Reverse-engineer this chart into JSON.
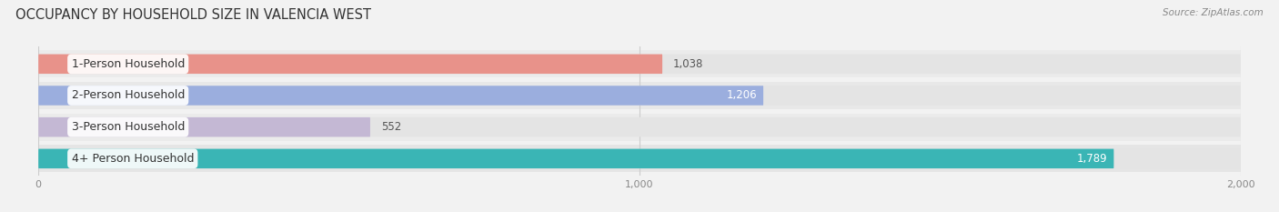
{
  "title": "OCCUPANCY BY HOUSEHOLD SIZE IN VALENCIA WEST",
  "source": "Source: ZipAtlas.com",
  "categories": [
    "1-Person Household",
    "2-Person Household",
    "3-Person Household",
    "4+ Person Household"
  ],
  "values": [
    1038,
    1206,
    552,
    1789
  ],
  "value_labels": [
    "1,038",
    "1,206",
    "552",
    "1,789"
  ],
  "value_label_inside": [
    false,
    true,
    false,
    true
  ],
  "bar_colors": [
    "#e8928a",
    "#9baede",
    "#c4b8d4",
    "#3ab5b5"
  ],
  "bar_bg_color": "#e4e4e4",
  "background_color": "#f2f2f2",
  "row_bg_colors": [
    "#ebebeb",
    "#e8e8e8",
    "#ebebeb",
    "#e5e5e5"
  ],
  "xlim": [
    0,
    2000
  ],
  "xticks": [
    0,
    1000,
    2000
  ],
  "xtick_labels": [
    "0",
    "1,000",
    "2,000"
  ],
  "title_fontsize": 10.5,
  "label_fontsize": 9,
  "value_fontsize": 8.5,
  "bar_height": 0.62,
  "label_box_color": "#ffffff"
}
